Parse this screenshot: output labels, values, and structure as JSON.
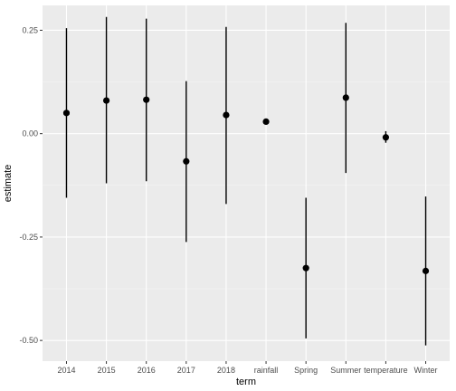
{
  "chart_data": {
    "type": "scatter",
    "subtype": "pointrange",
    "title": "",
    "xlabel": "term",
    "ylabel": "estimate",
    "categories": [
      "2014",
      "2015",
      "2016",
      "2017",
      "2018",
      "rainfall",
      "Spring",
      "Summer",
      "temperature",
      "Winter"
    ],
    "estimate": [
      0.05,
      0.08,
      0.082,
      -0.067,
      0.045,
      0.029,
      -0.325,
      0.087,
      -0.009,
      -0.332
    ],
    "lower": [
      -0.155,
      -0.12,
      -0.115,
      -0.262,
      -0.17,
      0.029,
      -0.495,
      -0.095,
      -0.022,
      -0.512
    ],
    "upper": [
      0.255,
      0.282,
      0.278,
      0.127,
      0.258,
      0.029,
      -0.155,
      0.268,
      0.006,
      -0.152
    ],
    "yticks": [
      0.25,
      0.0,
      -0.25,
      -0.5
    ],
    "ytick_labels": [
      "0.25",
      "0.00",
      "-0.25",
      "-0.50"
    ],
    "ylim": [
      -0.55,
      0.31
    ],
    "grid": true,
    "legend": "none",
    "colors": {
      "panel": "#ebebeb",
      "grid_major": "#ffffff",
      "points": "#000000",
      "tick_text": "#4d4d4d"
    }
  }
}
